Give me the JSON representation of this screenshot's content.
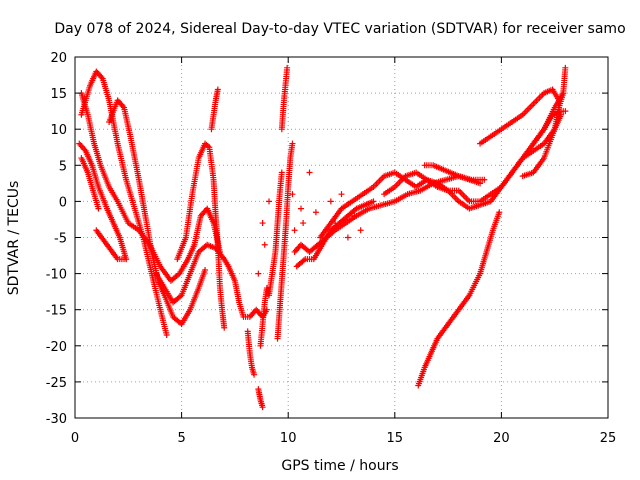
{
  "chart_data": {
    "type": "scatter",
    "title": "Day 078 of 2024, Sidereal Day-to-day VTEC variation (SDTVAR) for receiver samo",
    "xlabel": "GPS time / hours",
    "ylabel": "SDTVAR / TECUs",
    "xlim": [
      0,
      25
    ],
    "ylim": [
      -30,
      20
    ],
    "xticks": [
      0,
      5,
      10,
      15,
      20,
      25
    ],
    "yticks": [
      -30,
      -25,
      -20,
      -15,
      -10,
      -5,
      0,
      5,
      10,
      15,
      20
    ],
    "grid": true,
    "marker": "+",
    "color": "#ff0000",
    "series": [
      {
        "name": "track-1",
        "points": [
          [
            0.3,
            15
          ],
          [
            0.6,
            12
          ],
          [
            0.9,
            8
          ],
          [
            1.2,
            5
          ],
          [
            1.6,
            2
          ],
          [
            2.0,
            0
          ],
          [
            2.5,
            -3
          ],
          [
            3.0,
            -4
          ],
          [
            3.5,
            -6
          ],
          [
            4.0,
            -9
          ],
          [
            4.5,
            -11
          ],
          [
            4.9,
            -10
          ],
          [
            5.3,
            -8
          ],
          [
            5.6,
            -6
          ],
          [
            5.9,
            -2
          ],
          [
            6.2,
            -1
          ],
          [
            6.5,
            -3
          ],
          [
            6.8,
            -7
          ]
        ]
      },
      {
        "name": "track-2",
        "points": [
          [
            0.3,
            12
          ],
          [
            0.7,
            16
          ],
          [
            1.0,
            18
          ],
          [
            1.3,
            17
          ],
          [
            1.6,
            14
          ],
          [
            2.0,
            8
          ],
          [
            2.4,
            3
          ],
          [
            2.8,
            -1
          ],
          [
            3.2,
            -5
          ],
          [
            3.6,
            -10
          ],
          [
            4.0,
            -15
          ],
          [
            4.3,
            -18.5
          ]
        ]
      },
      {
        "name": "track-3",
        "points": [
          [
            0.2,
            8
          ],
          [
            0.5,
            7
          ],
          [
            0.8,
            5
          ],
          [
            1.1,
            2
          ],
          [
            1.5,
            -1
          ],
          [
            1.8,
            -3
          ],
          [
            2.1,
            -5
          ],
          [
            2.4,
            -8
          ]
        ]
      },
      {
        "name": "track-4",
        "points": [
          [
            0.3,
            6
          ],
          [
            0.6,
            4
          ],
          [
            0.9,
            1
          ],
          [
            1.1,
            -1
          ]
        ]
      },
      {
        "name": "track-5",
        "points": [
          [
            1.0,
            -4
          ],
          [
            1.5,
            -6
          ],
          [
            2.0,
            -8
          ],
          [
            2.4,
            -8
          ]
        ]
      },
      {
        "name": "track-6",
        "points": [
          [
            1.6,
            11
          ],
          [
            2.0,
            14
          ],
          [
            2.3,
            13
          ],
          [
            2.6,
            9
          ],
          [
            3.0,
            3
          ],
          [
            3.3,
            -2
          ],
          [
            3.6,
            -7
          ],
          [
            3.9,
            -11
          ],
          [
            4.2,
            -13
          ],
          [
            4.6,
            -16
          ],
          [
            5.0,
            -17
          ],
          [
            5.4,
            -15
          ],
          [
            5.8,
            -12
          ],
          [
            6.1,
            -9.5
          ]
        ]
      },
      {
        "name": "track-7",
        "points": [
          [
            3.8,
            -10
          ],
          [
            4.2,
            -12
          ],
          [
            4.6,
            -14
          ],
          [
            5.0,
            -13
          ],
          [
            5.4,
            -10
          ],
          [
            5.8,
            -7
          ],
          [
            6.2,
            -6
          ],
          [
            6.6,
            -6.5
          ],
          [
            7.0,
            -8
          ],
          [
            7.2,
            -9
          ]
        ]
      },
      {
        "name": "track-8",
        "points": [
          [
            4.8,
            -8
          ],
          [
            5.2,
            -5
          ],
          [
            5.5,
            1
          ],
          [
            5.8,
            6
          ],
          [
            6.1,
            8
          ],
          [
            6.3,
            7.5
          ],
          [
            6.5,
            3
          ],
          [
            6.6,
            -2
          ],
          [
            6.7,
            -6
          ],
          [
            6.8,
            -12
          ],
          [
            6.9,
            -15
          ],
          [
            7.0,
            -17.5
          ]
        ]
      },
      {
        "name": "track-9",
        "points": [
          [
            6.4,
            10
          ],
          [
            6.5,
            12
          ],
          [
            6.6,
            14
          ],
          [
            6.7,
            15.5
          ]
        ]
      },
      {
        "name": "track-10",
        "points": [
          [
            7.2,
            -9
          ],
          [
            7.5,
            -11
          ],
          [
            7.7,
            -14
          ],
          [
            7.9,
            -16
          ],
          [
            8.2,
            -16
          ],
          [
            8.5,
            -15
          ],
          [
            8.8,
            -16
          ],
          [
            9.0,
            -15
          ]
        ]
      },
      {
        "name": "track-11",
        "points": [
          [
            8.1,
            -18
          ],
          [
            8.2,
            -21
          ],
          [
            8.3,
            -23
          ],
          [
            8.4,
            -24
          ]
        ]
      },
      {
        "name": "track-12",
        "points": [
          [
            8.6,
            -26
          ],
          [
            8.7,
            -27.5
          ],
          [
            8.8,
            -28.5
          ]
        ]
      },
      {
        "name": "track-13",
        "points": [
          [
            8.7,
            -20
          ],
          [
            8.8,
            -17
          ],
          [
            8.9,
            -14
          ],
          [
            9.0,
            -12
          ],
          [
            9.1,
            -13
          ],
          [
            9.2,
            -11
          ],
          [
            9.3,
            -9
          ],
          [
            9.4,
            -7
          ],
          [
            9.5,
            -3
          ],
          [
            9.6,
            1
          ],
          [
            9.7,
            4
          ]
        ]
      },
      {
        "name": "track-14",
        "points": [
          [
            9.5,
            -19
          ],
          [
            9.6,
            -15
          ],
          [
            9.7,
            -11
          ],
          [
            9.8,
            -7
          ],
          [
            9.9,
            -3
          ],
          [
            10.0,
            2
          ],
          [
            10.1,
            6
          ],
          [
            10.2,
            8
          ]
        ]
      },
      {
        "name": "track-15",
        "points": [
          [
            9.7,
            10
          ],
          [
            9.8,
            14
          ],
          [
            9.9,
            17
          ],
          [
            9.95,
            18.5
          ]
        ]
      },
      {
        "name": "track-16",
        "points": [
          [
            10.3,
            -7
          ],
          [
            10.6,
            -6
          ],
          [
            11.0,
            -7
          ],
          [
            11.4,
            -6
          ],
          [
            11.8,
            -5
          ],
          [
            12.2,
            -4
          ],
          [
            12.7,
            -3
          ],
          [
            13.2,
            -2
          ],
          [
            13.8,
            -1
          ],
          [
            14.4,
            -0.5
          ],
          [
            15.0,
            0
          ],
          [
            15.6,
            1
          ],
          [
            16.2,
            1.5
          ],
          [
            16.8,
            2.5
          ],
          [
            17.4,
            3
          ],
          [
            18.0,
            3.5
          ],
          [
            18.6,
            3
          ],
          [
            19.2,
            3
          ]
        ]
      },
      {
        "name": "track-17",
        "points": [
          [
            10.4,
            -9
          ],
          [
            10.8,
            -8
          ],
          [
            11.2,
            -8
          ],
          [
            11.6,
            -6
          ],
          [
            12.0,
            -4
          ],
          [
            12.4,
            -3
          ],
          [
            12.8,
            -2
          ],
          [
            13.2,
            -1
          ],
          [
            13.6,
            -0.5
          ],
          [
            14.0,
            0
          ]
        ]
      },
      {
        "name": "track-18",
        "points": [
          [
            11.5,
            -5
          ],
          [
            12.0,
            -3
          ],
          [
            12.5,
            -1
          ],
          [
            13.0,
            0
          ],
          [
            13.5,
            1
          ],
          [
            14.0,
            2
          ],
          [
            14.5,
            3.5
          ],
          [
            15.0,
            4
          ],
          [
            15.5,
            3
          ],
          [
            16.0,
            2
          ],
          [
            16.5,
            3
          ],
          [
            17.0,
            2
          ],
          [
            17.5,
            1.5
          ],
          [
            18.0,
            1.5
          ],
          [
            18.5,
            0
          ],
          [
            19.0,
            0
          ],
          [
            19.5,
            1
          ],
          [
            20.0,
            2
          ],
          [
            20.5,
            4
          ],
          [
            21.0,
            6
          ],
          [
            21.5,
            7
          ],
          [
            22.0,
            8
          ],
          [
            22.5,
            10
          ],
          [
            22.8,
            12
          ]
        ]
      },
      {
        "name": "track-19",
        "points": [
          [
            14.5,
            1
          ],
          [
            15.0,
            2
          ],
          [
            15.5,
            3.5
          ],
          [
            16.0,
            4
          ],
          [
            16.5,
            3
          ],
          [
            17.0,
            2.5
          ],
          [
            17.5,
            1.5
          ],
          [
            18.0,
            0
          ],
          [
            18.5,
            -1
          ],
          [
            19.0,
            -0.5
          ],
          [
            19.5,
            0
          ],
          [
            20.0,
            2
          ],
          [
            20.5,
            4
          ],
          [
            21.0,
            6
          ],
          [
            21.5,
            8
          ],
          [
            22.0,
            10
          ],
          [
            22.5,
            13
          ],
          [
            22.9,
            15
          ]
        ]
      },
      {
        "name": "track-20",
        "points": [
          [
            16.4,
            5
          ],
          [
            16.8,
            5
          ],
          [
            17.2,
            4.5
          ],
          [
            17.6,
            4
          ],
          [
            18.0,
            3.5
          ],
          [
            18.5,
            3
          ],
          [
            19.0,
            2.5
          ]
        ]
      },
      {
        "name": "track-21",
        "points": [
          [
            19.0,
            8
          ],
          [
            19.5,
            9
          ],
          [
            20.0,
            10
          ],
          [
            20.5,
            11
          ],
          [
            21.0,
            12
          ],
          [
            21.5,
            13.5
          ],
          [
            22.0,
            15
          ],
          [
            22.4,
            15.5
          ],
          [
            22.7,
            14
          ]
        ]
      },
      {
        "name": "track-22",
        "points": [
          [
            21.0,
            3.5
          ],
          [
            21.5,
            4
          ],
          [
            22.0,
            6
          ],
          [
            22.5,
            10
          ],
          [
            22.7,
            13
          ],
          [
            22.9,
            15
          ],
          [
            23.0,
            18.5
          ]
        ]
      },
      {
        "name": "track-23",
        "points": [
          [
            21.5,
            8
          ],
          [
            22.0,
            10
          ],
          [
            22.4,
            12
          ],
          [
            22.8,
            12.5
          ],
          [
            23.0,
            12.5
          ]
        ]
      },
      {
        "name": "track-24",
        "points": [
          [
            16.1,
            -25.5
          ],
          [
            16.4,
            -23
          ],
          [
            16.7,
            -21
          ],
          [
            17.0,
            -19
          ],
          [
            17.5,
            -17
          ],
          [
            18.0,
            -15
          ],
          [
            18.5,
            -13
          ],
          [
            19.0,
            -10
          ],
          [
            19.3,
            -7
          ],
          [
            19.6,
            -4
          ],
          [
            19.9,
            -1.5
          ]
        ]
      }
    ],
    "scattered_points": [
      [
        11.0,
        4
      ],
      [
        12.0,
        0
      ],
      [
        12.2,
        -3
      ],
      [
        12.5,
        1
      ],
      [
        12.8,
        -5
      ],
      [
        13.1,
        -2
      ],
      [
        13.4,
        -4
      ],
      [
        10.6,
        -1
      ],
      [
        10.7,
        -3
      ],
      [
        11.3,
        -1.5
      ],
      [
        10.3,
        -4
      ],
      [
        10.2,
        1
      ],
      [
        9.1,
        0
      ],
      [
        8.9,
        -6
      ],
      [
        8.6,
        -10
      ],
      [
        8.8,
        -3
      ]
    ]
  }
}
